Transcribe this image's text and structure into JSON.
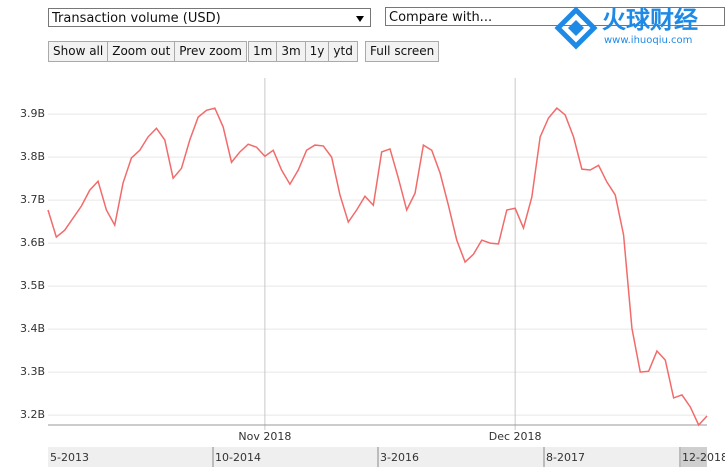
{
  "toolbar": {
    "metric": "Transaction volume (USD)",
    "compare": "Compare with...",
    "buttons": [
      "Show all",
      "Zoom out",
      "Prev zoom"
    ],
    "ranges": [
      "1m",
      "3m",
      "1y",
      "ytd"
    ],
    "fullscreen": "Full screen"
  },
  "logo": {
    "name": "火球财经",
    "url": "www.ihuoqiu.com"
  },
  "chart_data": {
    "type": "line",
    "color": "#f26b6b",
    "grid": true,
    "values": [
      3.677,
      3.614,
      3.63,
      3.658,
      3.686,
      3.723,
      3.744,
      3.677,
      3.642,
      3.74,
      3.798,
      3.816,
      3.847,
      3.867,
      3.84,
      3.751,
      3.774,
      3.84,
      3.893,
      3.909,
      3.914,
      3.87,
      3.788,
      3.812,
      3.83,
      3.823,
      3.802,
      3.816,
      3.77,
      3.737,
      3.77,
      3.816,
      3.828,
      3.826,
      3.8,
      3.712,
      3.649,
      3.677,
      3.709,
      3.688,
      3.812,
      3.819,
      3.751,
      3.677,
      3.716,
      3.828,
      3.816,
      3.763,
      3.688,
      3.607,
      3.556,
      3.574,
      3.607,
      3.6,
      3.598,
      3.677,
      3.681,
      3.635,
      3.707,
      3.847,
      3.891,
      3.914,
      3.898,
      3.847,
      3.772,
      3.77,
      3.781,
      3.742,
      3.712,
      3.619,
      3.402,
      3.3,
      3.302,
      3.349,
      3.328,
      3.24,
      3.247,
      3.219,
      3.177,
      3.198
    ],
    "xlim": [
      0,
      79
    ],
    "xticks": [
      {
        "value": 26,
        "label": "Nov 2018"
      },
      {
        "value": 56,
        "label": "Dec 2018"
      }
    ],
    "ylim": [
      3.177,
      3.984
    ],
    "yticks": [
      {
        "value": 3.2,
        "label": "3.2B"
      },
      {
        "value": 3.3,
        "label": "3.3B"
      },
      {
        "value": 3.4,
        "label": "3.4B"
      },
      {
        "value": 3.5,
        "label": "3.5B"
      },
      {
        "value": 3.6,
        "label": "3.6B"
      },
      {
        "value": 3.7,
        "label": "3.7B"
      },
      {
        "value": 3.8,
        "label": "3.8B"
      },
      {
        "value": 3.9,
        "label": "3.9B"
      }
    ]
  },
  "navigator": {
    "labels": [
      "5-2013",
      "10-2014",
      "3-2016",
      "8-2017",
      "12-2018"
    ]
  }
}
